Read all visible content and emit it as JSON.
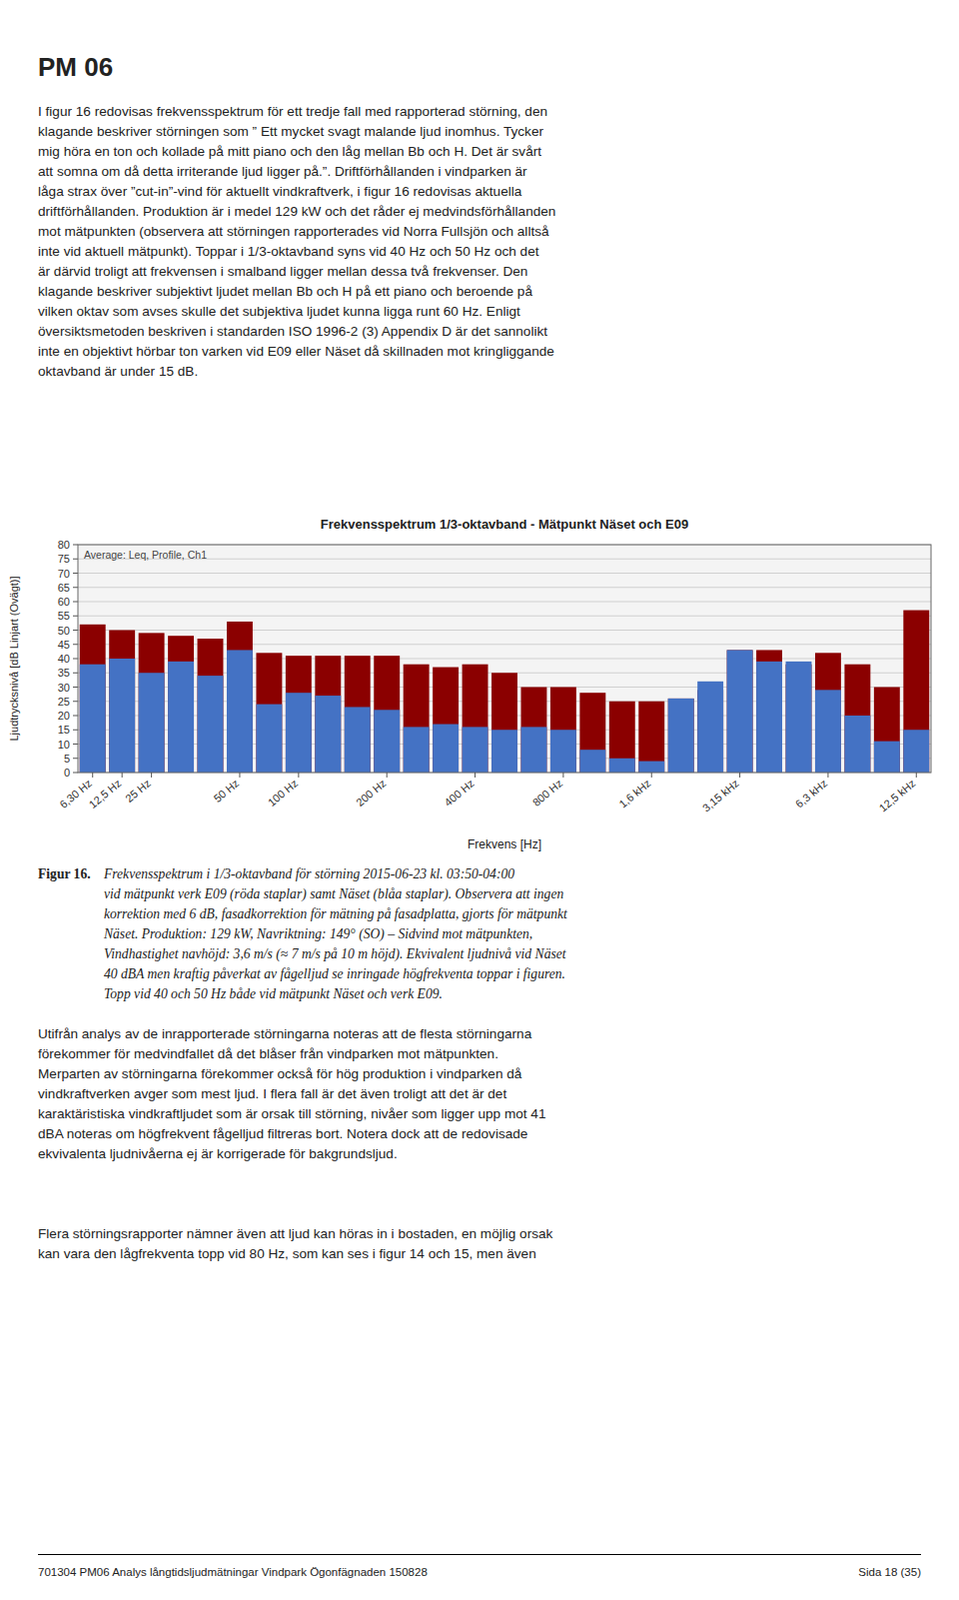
{
  "page": {
    "pm_title": "PM 06",
    "body_top": [
      "I figur 16 redovisas frekvensspektrum för ett tredje fall med rapporterad störning, den",
      "klagande beskriver störningen som ” Ett mycket svagt malande ljud inomhus. Tycker",
      "mig höra en ton och kollade på mitt piano och den låg mellan Bb och H. Det är svårt",
      "att somna om då detta irriterande ljud ligger på.”. Driftförhållanden i vindparken är",
      "låga strax över ”cut-in”-vind för aktuellt vindkraftverk, i figur 16 redovisas aktuella",
      "driftförhållanden. Produktion är i medel 129 kW och det råder ej medvindsförhållanden",
      "mot mätpunkten (observera att störningen rapporterades vid Norra Fullsjön och alltså",
      "inte vid aktuell mätpunkt). Toppar i 1/3-oktavband syns vid 40 Hz och 50 Hz och det",
      "är därvid troligt att frekvensen i smalband ligger mellan dessa två frekvenser. Den",
      "klagande beskriver subjektivt ljudet mellan Bb och H på ett piano och beroende på",
      "vilken oktav som avses skulle det subjektiva ljudet kunna ligga runt 60 Hz. Enligt",
      "översiktsmetoden beskriven i standarden ISO 1996-2 (3) Appendix D är det sannolikt",
      "inte en objektivt hörbar ton varken vid E09 eller Näset då skillnaden mot kringliggande",
      "oktavband är under 15 dB."
    ],
    "caption_label": "Figur 16.",
    "caption": [
      "Frekvensspektrum i 1/3-oktavband för störning 2015-06-23 kl. 03:50-04:00",
      "vid mätpunkt verk E09 (röda staplar) samt Näset (blåa staplar). Observera att ingen",
      "korrektion med 6 dB, fasadkorrektion för mätning på fasadplatta, gjorts för mätpunkt",
      "Näset. Produktion: 129 kW, Navriktning: 149° (SO) – Sidvind mot mätpunkten,",
      "Vindhastighet navhöjd: 3,6 m/s (≈ 7 m/s på 10 m höjd). Ekvivalent ljudnivå vid Näset",
      "40 dBA men kraftig påverkat av fågelljud se inringade högfrekventa toppar i figuren.",
      "Topp vid 40 och 50 Hz både vid mätpunkt Näset och verk E09."
    ],
    "body_bottom": [
      "Utifrån analys av de inrapporterade störningarna noteras att de flesta störningarna",
      "förekommer för medvindfallet då det blåser från vindparken mot mätpunkten.",
      "Merparten av störningarna förekommer också för hög produktion i vindparken då",
      "vindkraftverken avger som mest ljud. I flera fall är det även troligt att det är det",
      "karaktäristiska vindkraftljudet som är orsak till störning, nivåer som ligger upp mot 41",
      "dBA noteras om högfrekvent fågelljud filtreras bort. Notera dock att de redovisade",
      "ekvivalenta ljudnivåerna ej är korrigerade för bakgrundsljud."
    ],
    "body_bottom_2": [
      "Flera störningsrapporter nämner även att ljud kan höras in i bostaden, en möjlig orsak",
      "kan vara den lågfrekventa topp vid 80 Hz, som kan ses i figur 14 och 15, men även"
    ],
    "footer": "701304 PM06 Analys långtidsljudmätningar Vindpark Ögonfägnaden 150828",
    "footer_page": "Sida 18 (35)"
  },
  "chart_data": {
    "type": "bar",
    "title": "Frekvensspektrum 1/3-oktavband - Mätpunkt Näset och E09",
    "subtitle": "Average: Leq, Profile, Ch1",
    "xlabel": "Frekvens [Hz]",
    "ylabel": "Ljudtrycksnivå [dB Linjart (Ovägt)]",
    "categories": [
      "6,30 Hz",
      "12,5 Hz",
      "25 Hz",
      null,
      null,
      "50 Hz",
      null,
      "100 Hz",
      null,
      null,
      "200 Hz",
      null,
      null,
      "400 Hz",
      null,
      null,
      "800 Hz",
      null,
      null,
      "1,6 kHz",
      null,
      null,
      "3,15 kHz",
      null,
      null,
      "6,3 kHz",
      null,
      null,
      "12,5 kHz"
    ],
    "series": [
      {
        "color": "#8B0000",
        "values": [
          52,
          50,
          49,
          48,
          47,
          53,
          42,
          41,
          41,
          41,
          41,
          38,
          37,
          38,
          35,
          30,
          30,
          28,
          25,
          25,
          26,
          29,
          43,
          43,
          38,
          42,
          38,
          30,
          57
        ]
      },
      {
        "color": "#4472C4",
        "values": [
          38,
          40,
          35,
          39,
          34,
          43,
          24,
          28,
          27,
          23,
          22,
          16,
          17,
          16,
          15,
          16,
          15,
          8,
          5,
          4,
          26,
          32,
          43,
          39,
          39,
          29,
          20,
          11,
          15
        ]
      }
    ],
    "ylim": [
      0,
      80
    ],
    "yticks": [
      0,
      5,
      10,
      15,
      20,
      25,
      30,
      35,
      40,
      45,
      50,
      55,
      60,
      65,
      70,
      75,
      80
    ],
    "grid": true
  }
}
